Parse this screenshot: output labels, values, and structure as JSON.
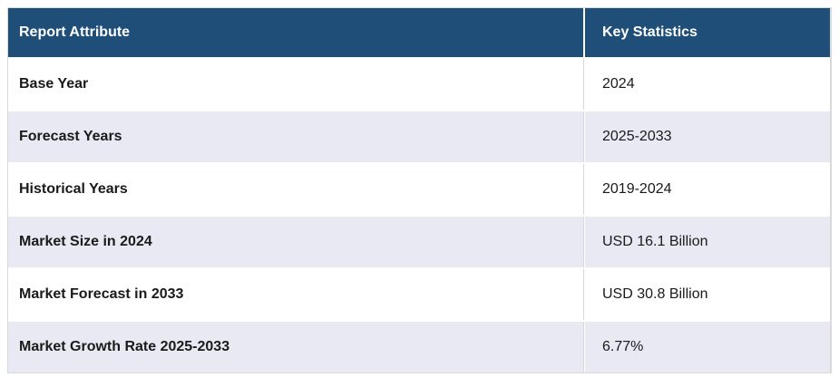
{
  "table": {
    "header": {
      "attribute_label": "Report Attribute",
      "statistics_label": "Key Statistics"
    },
    "rows": [
      {
        "attribute": "Base Year",
        "value": "2024"
      },
      {
        "attribute": "Forecast Years",
        "value": "2025-2033"
      },
      {
        "attribute": "Historical Years",
        "value": "2019-2024"
      },
      {
        "attribute": "Market Size in 2024",
        "value": "USD 16.1 Billion"
      },
      {
        "attribute": "Market Forecast in 2033",
        "value": "USD 30.8 Billion"
      },
      {
        "attribute": "Market Growth Rate 2025-2033",
        "value": "6.77%"
      }
    ],
    "colors": {
      "header_bg": "#1f4e79",
      "header_text": "#ffffff",
      "row_bg": "#ffffff",
      "row_alt_bg": "#e8e9f3",
      "border": "#d9d9d9",
      "text": "#1a1a1a"
    }
  }
}
